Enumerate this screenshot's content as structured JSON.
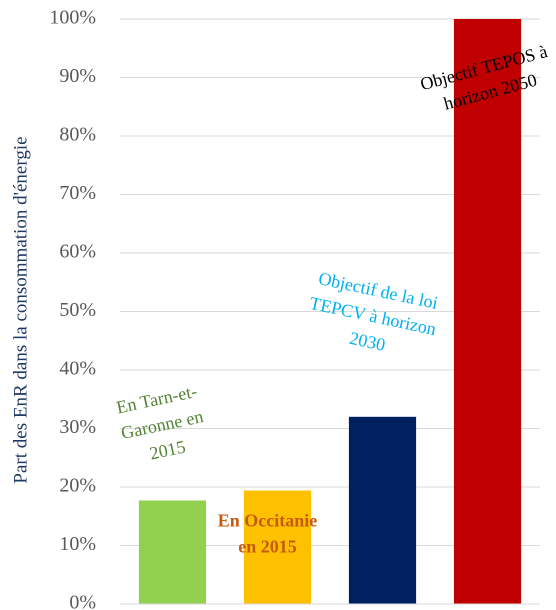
{
  "chart_data": {
    "type": "bar",
    "ylabel": "Part des EnR dans la consommation d'énergie",
    "categories": [
      null,
      null,
      null,
      null
    ],
    "values": [
      17.7,
      19.4,
      32,
      100
    ],
    "colors": [
      "#92d050",
      "#ffc000",
      "#002060",
      "#c00000"
    ],
    "ylim": [
      0,
      100
    ],
    "yticks": [
      {
        "value": 0,
        "label": "0%"
      },
      {
        "value": 10,
        "label": "10%"
      },
      {
        "value": 20,
        "label": "20%"
      },
      {
        "value": 30,
        "label": "30%"
      },
      {
        "value": 40,
        "label": "40%"
      },
      {
        "value": 50,
        "label": "50%"
      },
      {
        "value": 60,
        "label": "60%"
      },
      {
        "value": 70,
        "label": "70%"
      },
      {
        "value": 80,
        "label": "80%"
      },
      {
        "value": 90,
        "label": "90%"
      },
      {
        "value": 100,
        "label": "100%"
      }
    ],
    "grid": true,
    "annotations": [
      {
        "lines": [
          "En Tarn-et-",
          "Garonne en",
          "2015"
        ],
        "color": "#548235"
      },
      {
        "lines": [
          "En Occitanie",
          "en 2015"
        ],
        "color": "#c55a11"
      },
      {
        "lines": [
          "Objectif de la loi",
          "TEPCV à horizon",
          "2030"
        ],
        "color": "#00b0f0"
      },
      {
        "lines": [
          "Objectif TEPOS à",
          "horizon 2050"
        ],
        "color": "#000000"
      }
    ]
  }
}
